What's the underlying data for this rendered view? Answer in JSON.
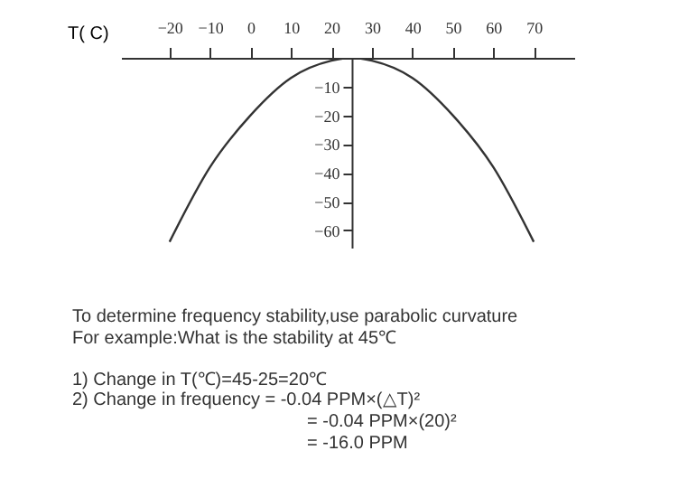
{
  "chart_data": {
    "type": "line",
    "xlabel": "T( C)",
    "x": [
      -20,
      -10,
      0,
      10,
      20,
      25,
      30,
      40,
      50,
      60,
      70
    ],
    "values": [
      -64,
      -38,
      -20,
      -7,
      -1,
      0,
      -1,
      -7,
      -20,
      -38,
      -64
    ],
    "color": "#333333",
    "xlim": [
      -32,
      80
    ],
    "xticks": [
      -20,
      -10,
      0,
      10,
      20,
      30,
      40,
      50,
      60,
      70
    ],
    "ylim": [
      -66,
      0
    ],
    "yticks": [
      -10,
      -20,
      -30,
      -40,
      -50,
      -60
    ],
    "grid": false,
    "line_style": "solid",
    "annotations": [
      "To determine frequency stability,use parabolic curvature",
      "For example:What is the stability at 45℃",
      "1) Change in T(℃)=45-25=20℃",
      "2) Change in frequency = -0.04 PPM×(△T)²",
      "= -0.04 PPM×(20)²",
      "= -16.0 PPM"
    ]
  }
}
